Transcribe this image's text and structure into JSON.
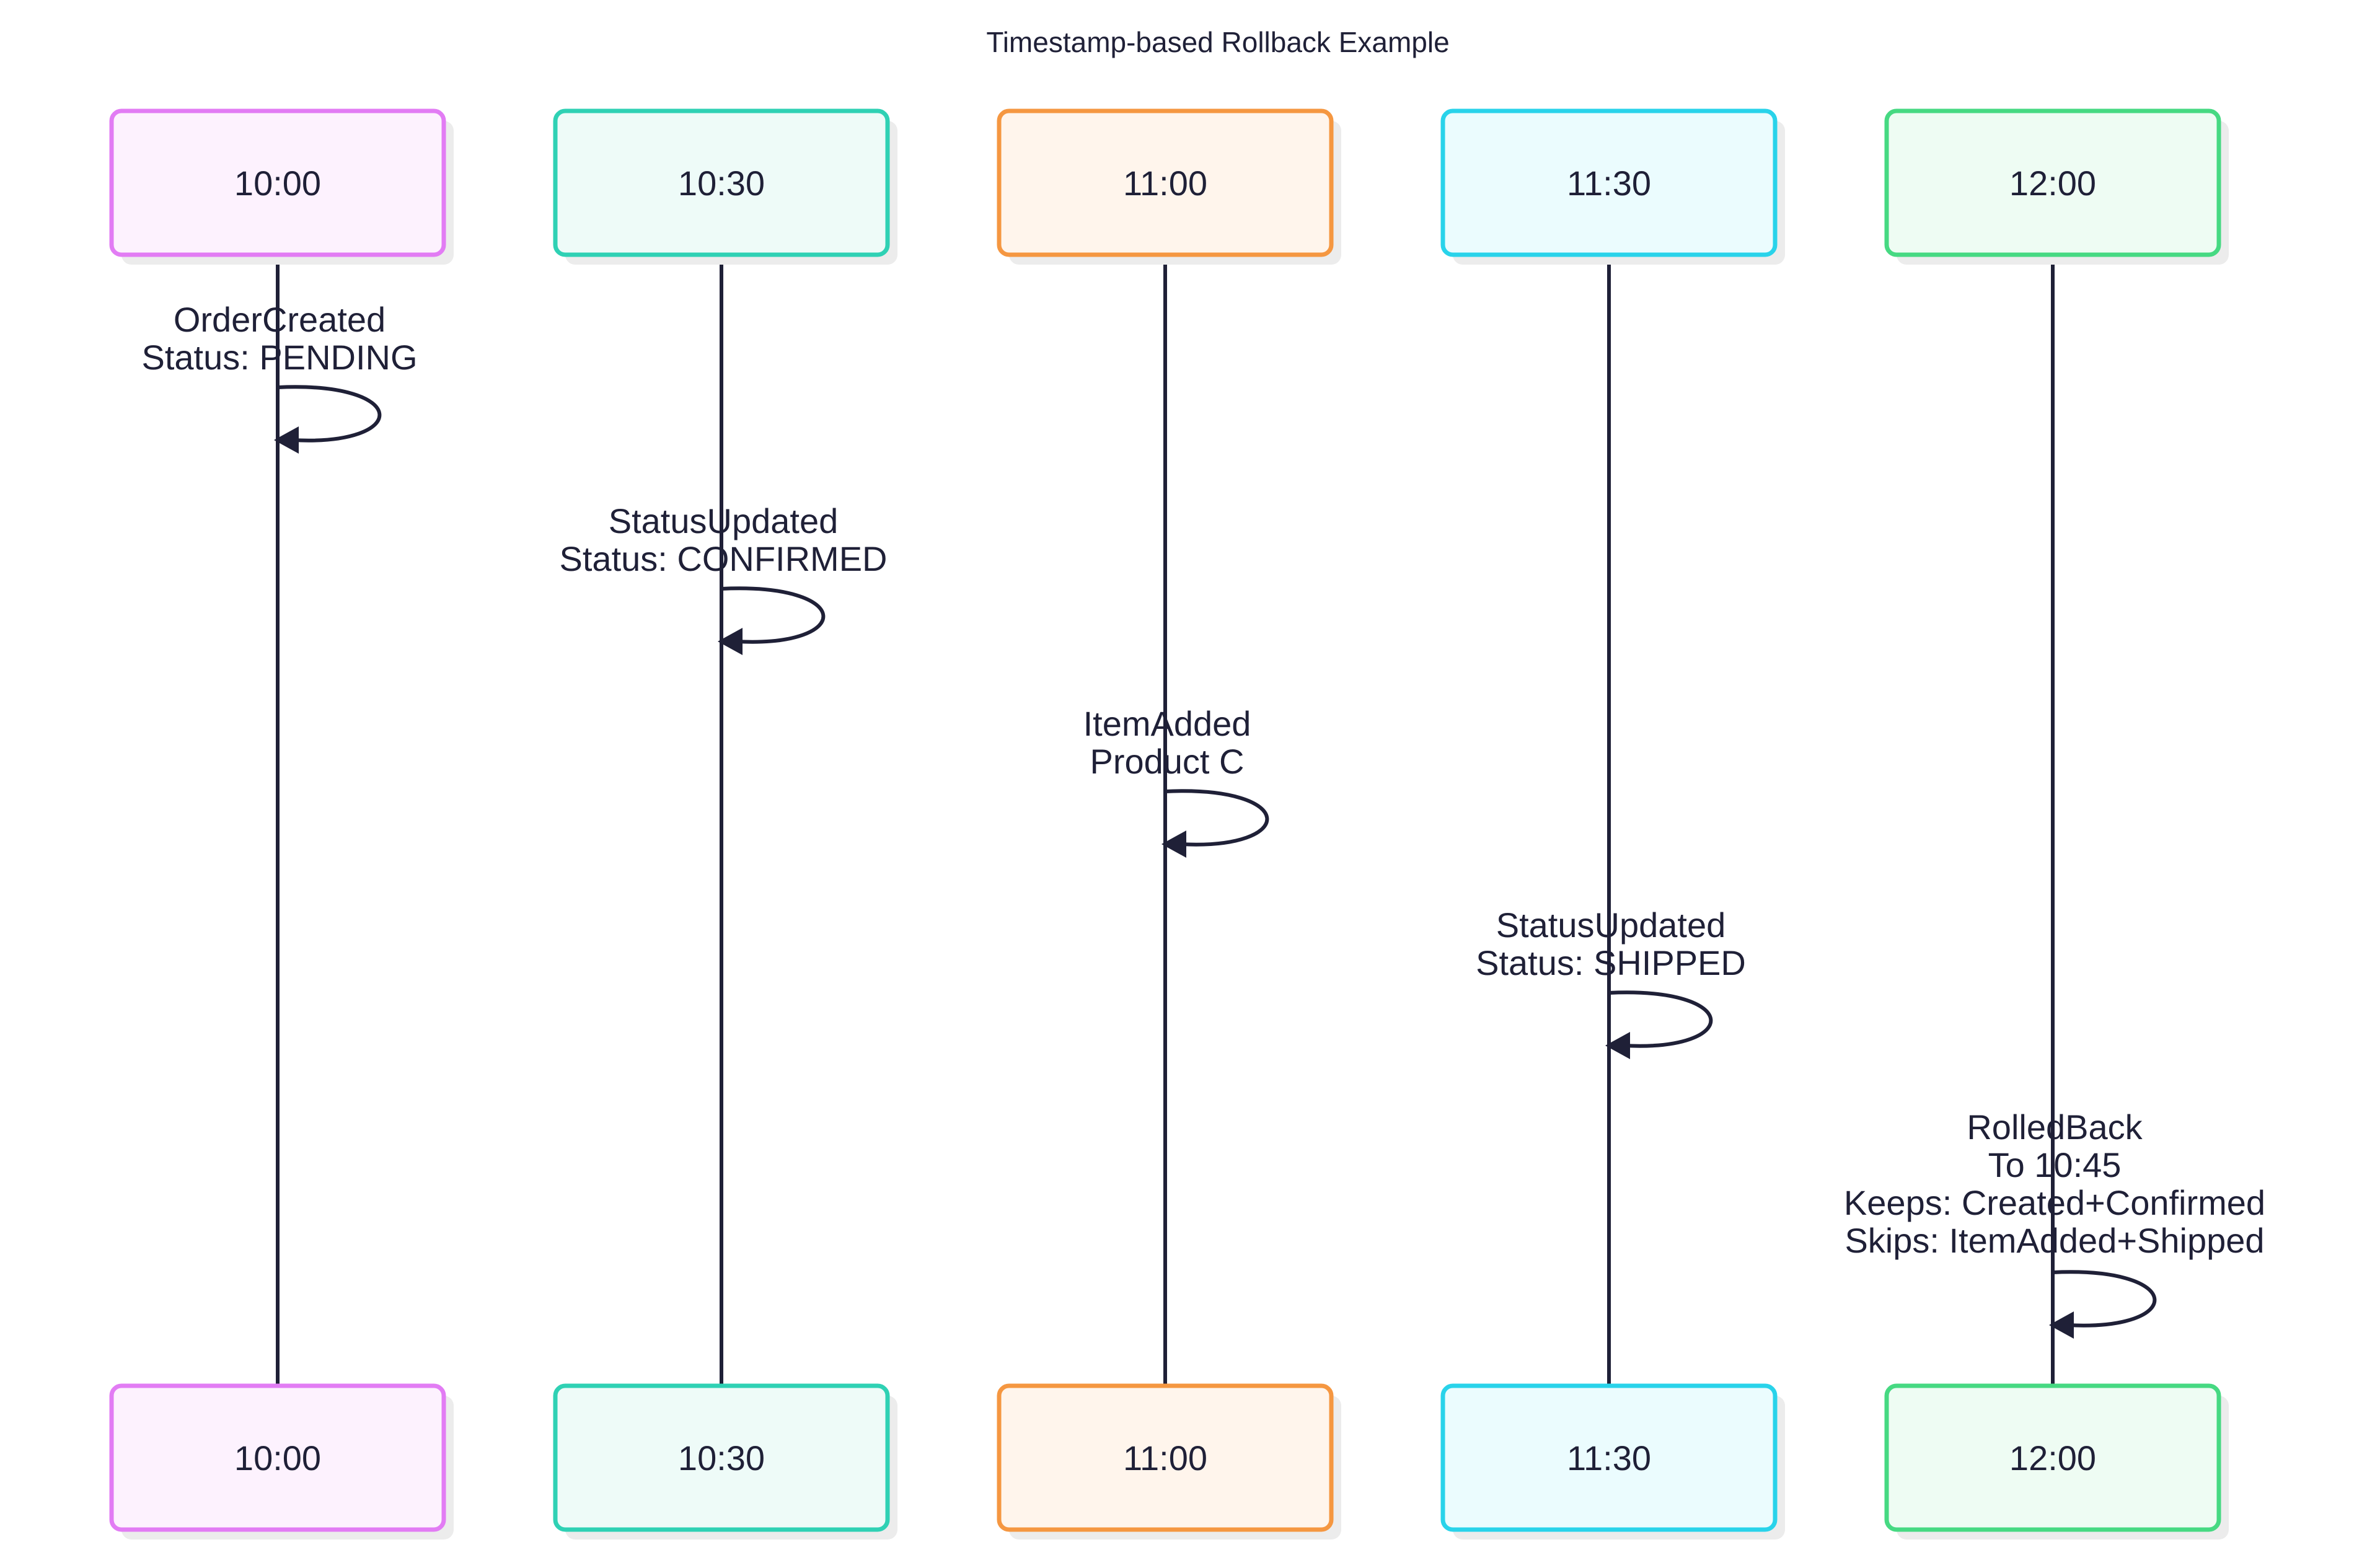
{
  "title": "Timestamp-based Rollback Example",
  "participants": [
    {
      "id": "p1000",
      "label": "10:00",
      "stroke": "#e27cf4",
      "fill": "#fdf2fe"
    },
    {
      "id": "p1030",
      "label": "10:30",
      "stroke": "#2fd1b4",
      "fill": "#eefbf8"
    },
    {
      "id": "p1100",
      "label": "11:00",
      "stroke": "#f59741",
      "fill": "#fff5ec"
    },
    {
      "id": "p1130",
      "label": "11:30",
      "stroke": "#29d3ea",
      "fill": "#ebfcfe"
    },
    {
      "id": "p1200",
      "label": "12:00",
      "stroke": "#46d982",
      "fill": "#eefcf3"
    }
  ],
  "messages": [
    {
      "participant": 0,
      "lines": [
        "OrderCreated",
        "Status: PENDING"
      ]
    },
    {
      "participant": 1,
      "lines": [
        "StatusUpdated",
        "Status: CONFIRMED"
      ]
    },
    {
      "participant": 2,
      "lines": [
        "ItemAdded",
        "Product C"
      ]
    },
    {
      "participant": 3,
      "lines": [
        "StatusUpdated",
        "Status: SHIPPED"
      ]
    },
    {
      "participant": 4,
      "lines": [
        "RolledBack",
        "To 10:45",
        "Keeps: Created+Confirmed",
        "Skips: ItemAdded+Shipped"
      ]
    }
  ]
}
